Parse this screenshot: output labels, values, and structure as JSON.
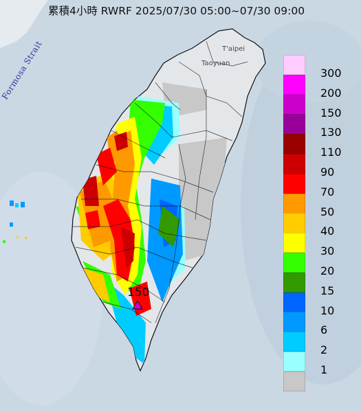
{
  "title": "累積4小時 RWRF 2025/07/30 05:00~07/30 09:00",
  "places": {
    "strait": "Formosa Strait",
    "taipei": "T'aipei",
    "taoyuan": "Taoyuan"
  },
  "max_value": "150",
  "legend": [
    {
      "label": "300",
      "color": "#ffccff"
    },
    {
      "label": "200",
      "color": "#ff00ff"
    },
    {
      "label": "150",
      "color": "#cc00cc"
    },
    {
      "label": "130",
      "color": "#990099"
    },
    {
      "label": "110",
      "color": "#990000"
    },
    {
      "label": "90",
      "color": "#cc0000"
    },
    {
      "label": "70",
      "color": "#ff0000"
    },
    {
      "label": "50",
      "color": "#ff9900"
    },
    {
      "label": "40",
      "color": "#ffcc00"
    },
    {
      "label": "30",
      "color": "#ffff00"
    },
    {
      "label": "20",
      "color": "#33ff00"
    },
    {
      "label": "15",
      "color": "#339900"
    },
    {
      "label": "10",
      "color": "#0066ff"
    },
    {
      "label": "6",
      "color": "#0099ff"
    },
    {
      "label": "2",
      "color": "#00ccff"
    },
    {
      "label": "1",
      "color": "#99ffff"
    },
    {
      "label": "",
      "color": "#c8c8c8"
    }
  ]
}
